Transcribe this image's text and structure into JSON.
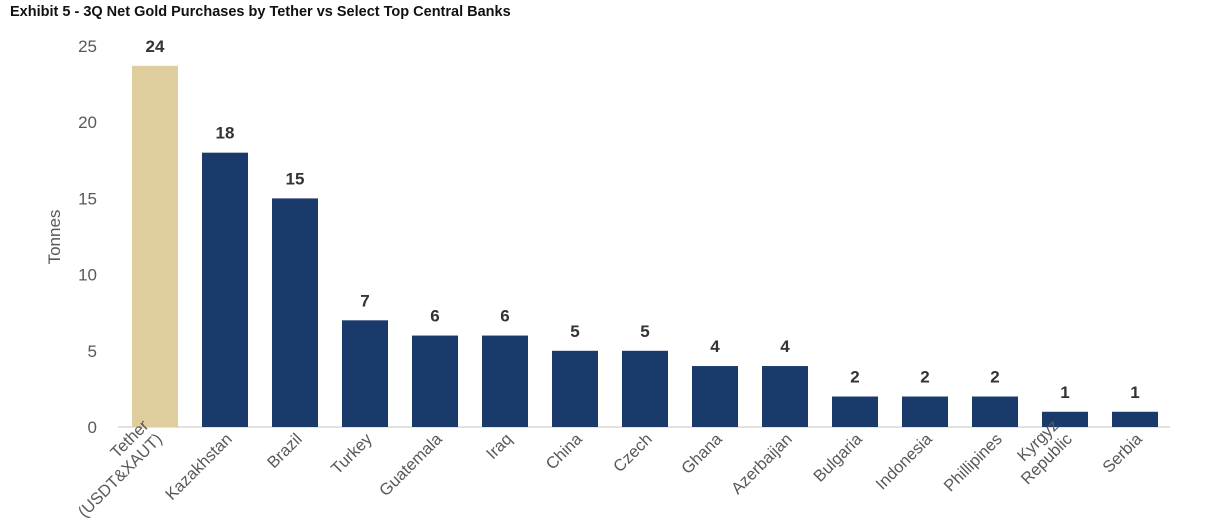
{
  "chart_data": {
    "type": "bar",
    "title": "Exhibit 5 - 3Q Net Gold Purchases by Tether vs Select Top Central Banks",
    "xlabel": "",
    "ylabel": "Tonnes",
    "ylim": [
      0,
      25
    ],
    "yticks": [
      0,
      5,
      10,
      15,
      20,
      25
    ],
    "grid": false,
    "categories": [
      "Tether (USDT&XAUT)",
      "Kazakhstan",
      "Brazil",
      "Turkey",
      "Guatemala",
      "Iraq",
      "China",
      "Czech",
      "Ghana",
      "Azerbaijan",
      "Bulgaria",
      "Indonesia",
      "Phillipines",
      "Kyrgyz Republic",
      "Serbia"
    ],
    "values": [
      23.7,
      18,
      15,
      7,
      6,
      6,
      5,
      5,
      4,
      4,
      2,
      2,
      2,
      1,
      1
    ],
    "data_labels": [
      "24",
      "18",
      "15",
      "7",
      "6",
      "6",
      "5",
      "5",
      "4",
      "4",
      "2",
      "2",
      "2",
      "1",
      "1"
    ],
    "colors": [
      "#DFCD9E",
      "#1A3A6B",
      "#1A3A6B",
      "#1A3A6B",
      "#1A3A6B",
      "#1A3A6B",
      "#1A3A6B",
      "#1A3A6B",
      "#1A3A6B",
      "#1A3A6B",
      "#1A3A6B",
      "#1A3A6B",
      "#1A3A6B",
      "#1A3A6B",
      "#1A3A6B"
    ]
  }
}
